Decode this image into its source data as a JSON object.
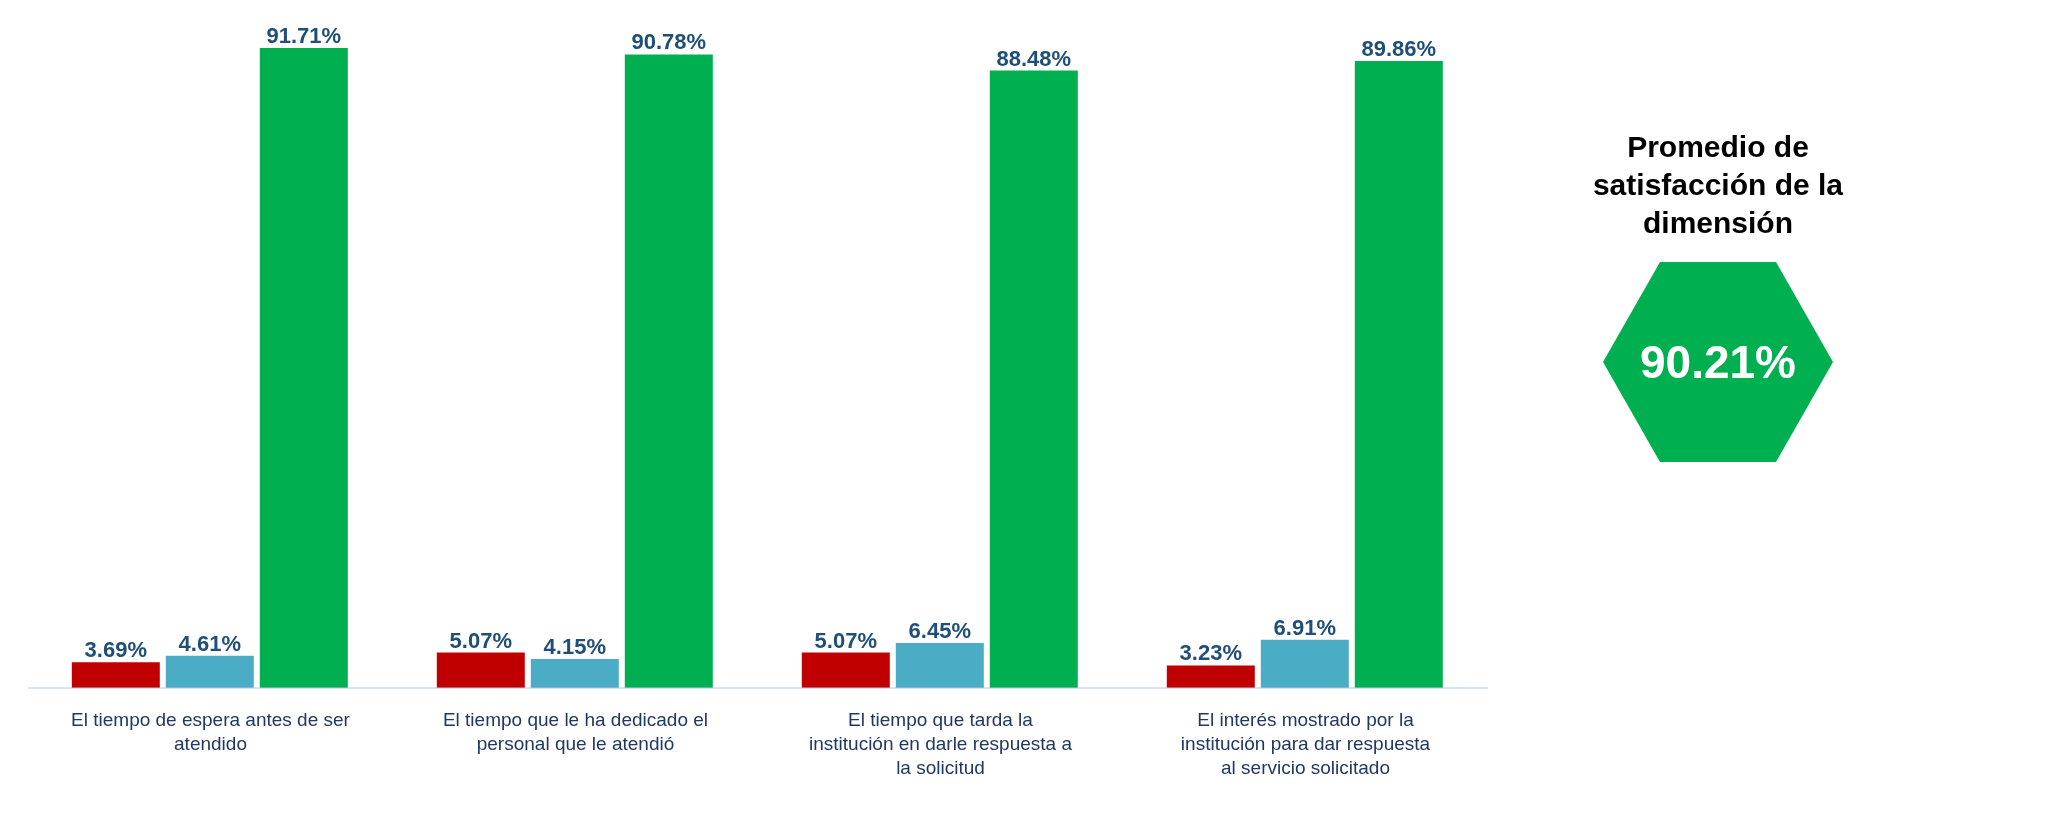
{
  "chart_data": {
    "type": "bar",
    "categories": [
      "El tiempo de espera antes de ser atendido",
      "El tiempo que le ha dedicado el personal que le atendió",
      "El tiempo que tarda la institución en darle respuesta a la solicitud",
      "El interés mostrado por la institución para dar respuesta al servicio solicitado"
    ],
    "series": [
      {
        "color": "#c00000",
        "values": [
          3.69,
          5.07,
          5.07,
          3.23
        ],
        "value_labels": [
          "3.69%",
          "5.07%",
          "5.07%",
          "3.23%"
        ]
      },
      {
        "color": "#4bacc6",
        "values": [
          4.61,
          4.15,
          6.45,
          6.91
        ],
        "value_labels": [
          "4.61%",
          "4.15%",
          "6.45%",
          "6.91%"
        ]
      },
      {
        "color": "#00b050",
        "values": [
          91.71,
          90.78,
          88.48,
          89.86
        ],
        "value_labels": [
          "91.71%",
          "90.78%",
          "88.48%",
          "89.86%"
        ]
      }
    ],
    "annotations": [
      "Promedio de satisfacción de la dimensión",
      "90.21%"
    ]
  }
}
